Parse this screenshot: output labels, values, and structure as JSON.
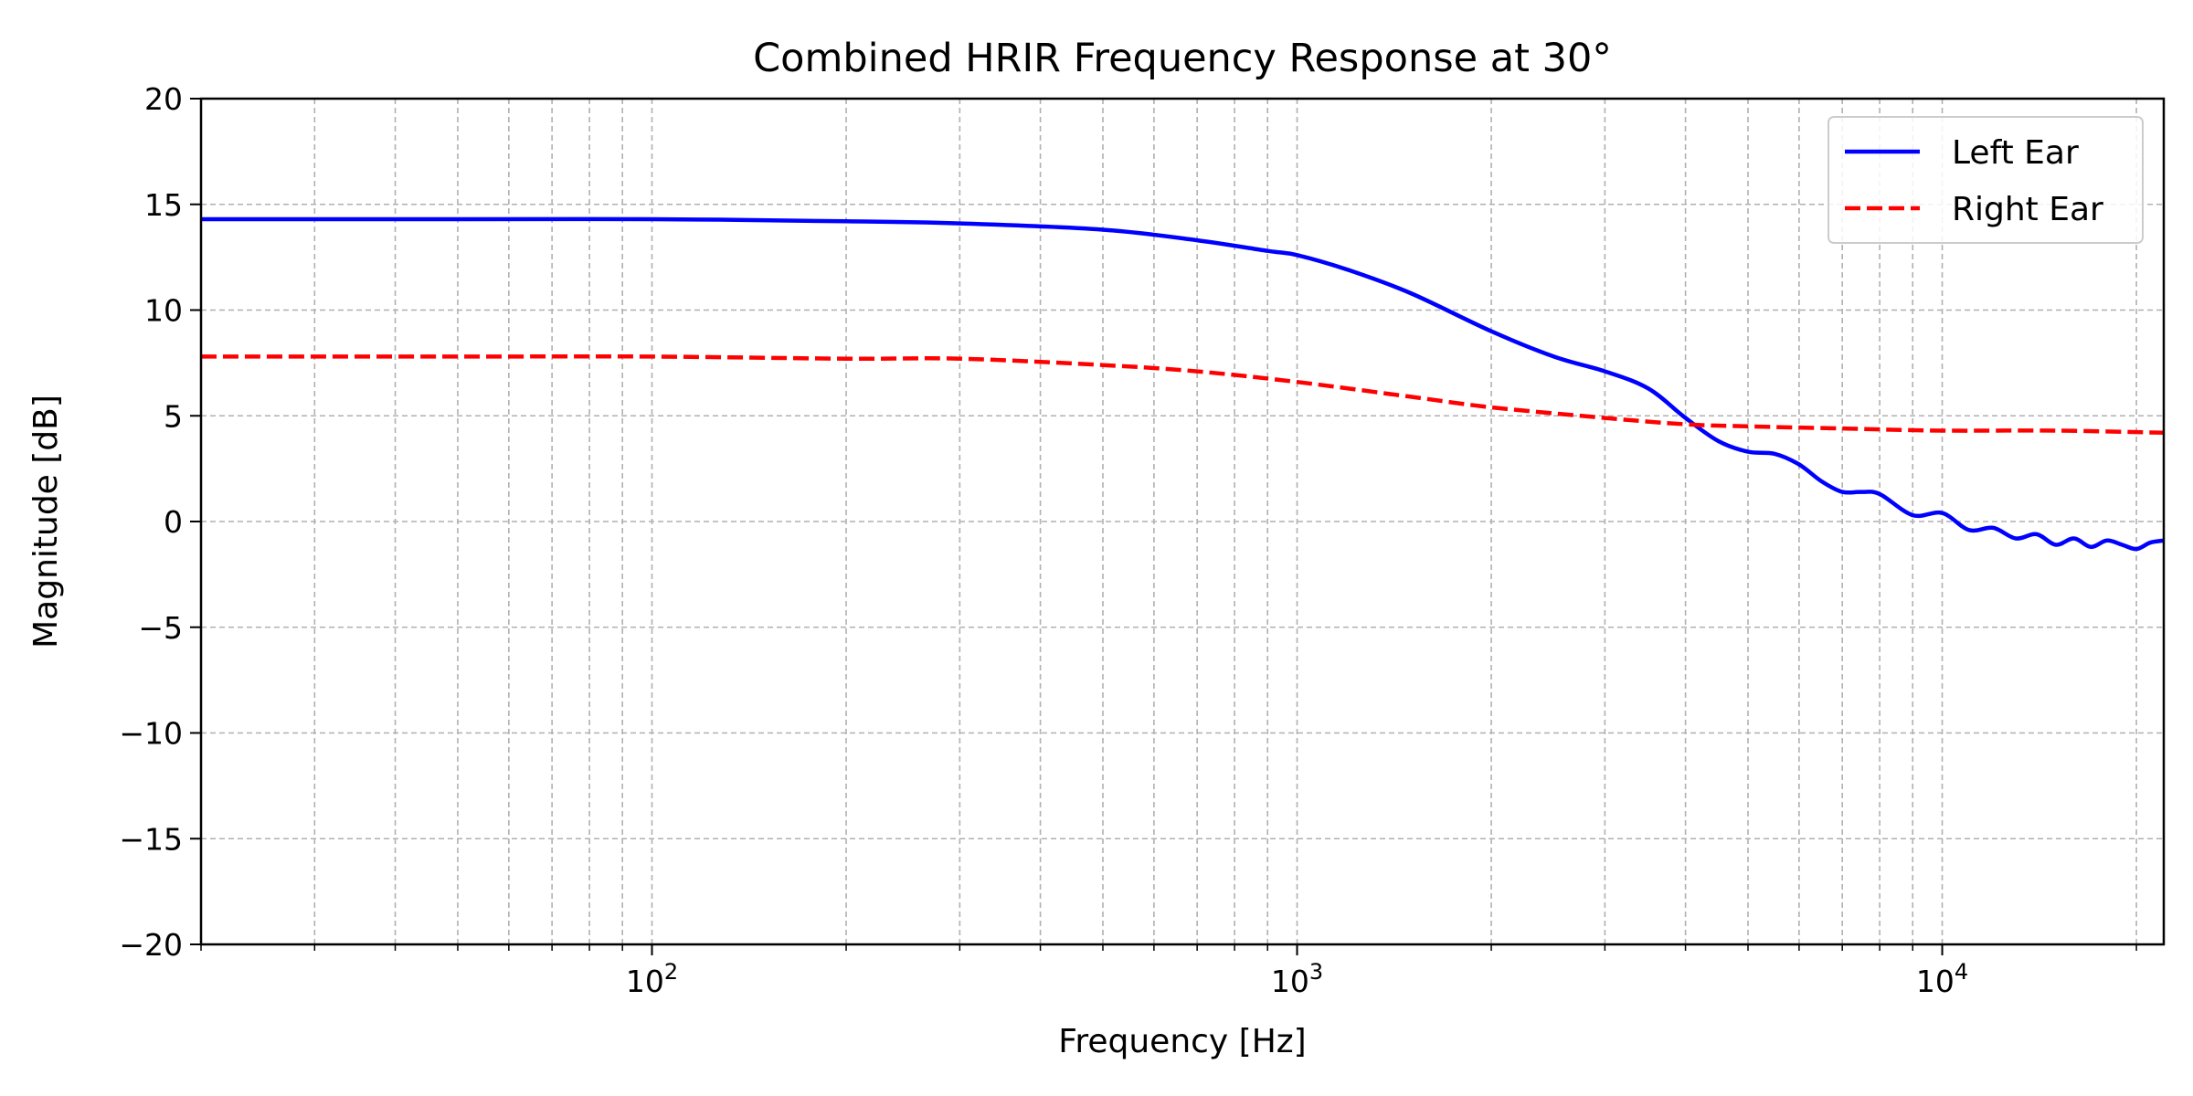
{
  "chart_data": {
    "type": "line",
    "title": "Combined HRIR Frequency Response at 30°",
    "xlabel": "Frequency [Hz]",
    "ylabel": "Magnitude [dB]",
    "x_scale": "log",
    "xlim": [
      20,
      22050
    ],
    "ylim": [
      -20,
      20
    ],
    "x_ticks": [
      100,
      1000,
      10000
    ],
    "x_tick_labels": [
      {
        "base": "10",
        "exp": "2"
      },
      {
        "base": "10",
        "exp": "3"
      },
      {
        "base": "10",
        "exp": "4"
      }
    ],
    "y_ticks": [
      -20,
      -15,
      -10,
      -5,
      0,
      5,
      10,
      15,
      20
    ],
    "y_tick_labels": [
      "−20",
      "−15",
      "−10",
      "−5",
      "0",
      "5",
      "10",
      "15",
      "20"
    ],
    "grid": true,
    "legend_position": "top-right",
    "series": [
      {
        "name": "Left Ear",
        "color": "#0000ff",
        "linestyle": "solid",
        "x": [
          20,
          50,
          100,
          200,
          300,
          500,
          700,
          900,
          1000,
          1200,
          1500,
          2000,
          2500,
          3000,
          3500,
          4000,
          4500,
          5000,
          5500,
          6000,
          6500,
          7000,
          7500,
          8000,
          9000,
          10000,
          11000,
          12000,
          13000,
          14000,
          15000,
          16000,
          17000,
          18000,
          19000,
          20000,
          21000,
          22050
        ],
        "y": [
          14.3,
          14.3,
          14.3,
          14.2,
          14.1,
          13.8,
          13.3,
          12.8,
          12.6,
          11.9,
          10.8,
          9.0,
          7.8,
          7.1,
          6.3,
          4.9,
          3.8,
          3.3,
          3.2,
          2.7,
          1.9,
          1.4,
          1.4,
          1.3,
          0.3,
          0.4,
          -0.4,
          -0.3,
          -0.8,
          -0.6,
          -1.1,
          -0.8,
          -1.2,
          -0.9,
          -1.1,
          -1.3,
          -1.0,
          -0.9
        ]
      },
      {
        "name": "Right Ear",
        "color": "#ff0000",
        "linestyle": "dashed",
        "x": [
          20,
          50,
          100,
          200,
          300,
          500,
          700,
          1000,
          1500,
          2000,
          3000,
          4000,
          5000,
          7000,
          10000,
          15000,
          22050
        ],
        "y": [
          7.8,
          7.8,
          7.8,
          7.7,
          7.7,
          7.4,
          7.1,
          6.6,
          5.9,
          5.4,
          4.9,
          4.6,
          4.5,
          4.4,
          4.3,
          4.3,
          4.2
        ]
      }
    ]
  }
}
